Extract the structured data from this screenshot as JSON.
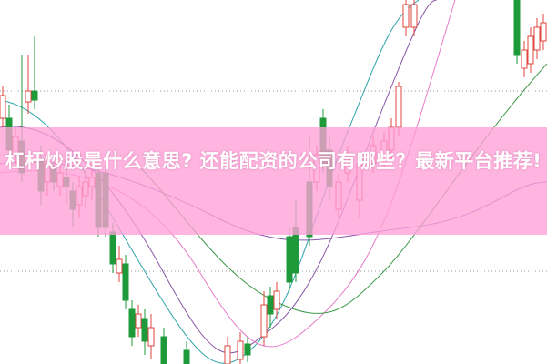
{
  "article": {
    "title": "杠杆炒股是什么意思? 还能配资的公司有哪些？最新平台推荐!"
  },
  "chart": {
    "type": "candlestick",
    "colors": {
      "up": "#e0463f",
      "down": "#1f9a3a",
      "ma_short": "#8a56a8",
      "ma_mid": "#e77bc6",
      "ma_long": "#3f9b4a",
      "ma_teal": "#2aa3a8",
      "grid": "#9a9a9a",
      "banner": "#ffa0d7"
    }
  }
}
